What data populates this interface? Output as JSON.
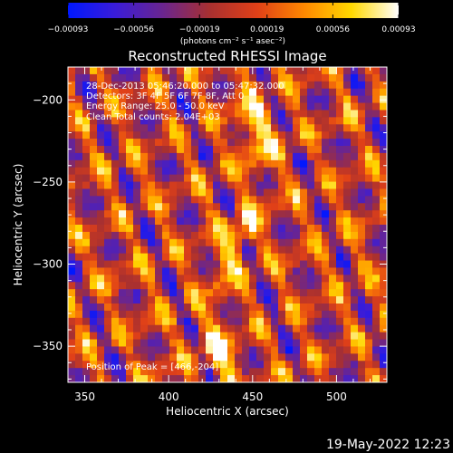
{
  "chart_data": {
    "type": "heatmap",
    "title": "Reconstructed RHESSI Image",
    "xlabel": "Heliocentric X (arcsec)",
    "ylabel": "Heliocentric Y (arcsec)",
    "xlim": [
      340,
      530
    ],
    "ylim": [
      -372,
      -180
    ],
    "x_ticks": [
      350,
      400,
      450,
      500
    ],
    "y_ticks": [
      -200,
      -250,
      -300,
      -350
    ],
    "x_tick_labels": [
      "350",
      "400",
      "450",
      "500"
    ],
    "y_tick_labels": [
      "−200",
      "−250",
      "−300",
      "−350"
    ],
    "colorbar": {
      "range": [
        -0.00093,
        0.00093
      ],
      "ticks": [
        -0.00093,
        -0.00056,
        -0.00019,
        0.00019,
        0.00056,
        0.00093
      ],
      "tick_labels": [
        "−0.00093",
        "−0.00056",
        "−0.00019",
        "0.00019",
        "0.00056",
        "0.00093"
      ],
      "unit_label": "(photons cm⁻² s⁻¹ asec⁻²)",
      "colors": [
        "#0018ff",
        "#3a1cd8",
        "#6a2590",
        "#a83030",
        "#e04018",
        "#ff8800",
        "#ffd800",
        "#ffffff"
      ]
    },
    "annotations": [
      "28-Dec-2013 05:46:20.000 to 05:47:32.000",
      "Detectors: 3F 4F 5F 6F 7F 8F, Att 0",
      "Energy Range: 25.0 - 50.0 keV",
      "Clean     Total counts: 2.04E+03"
    ],
    "peak_label": "Position of Peak = [466,-204]",
    "peak": [
      466,
      -204
    ]
  },
  "timestamp": "19-May-2022 12:23"
}
